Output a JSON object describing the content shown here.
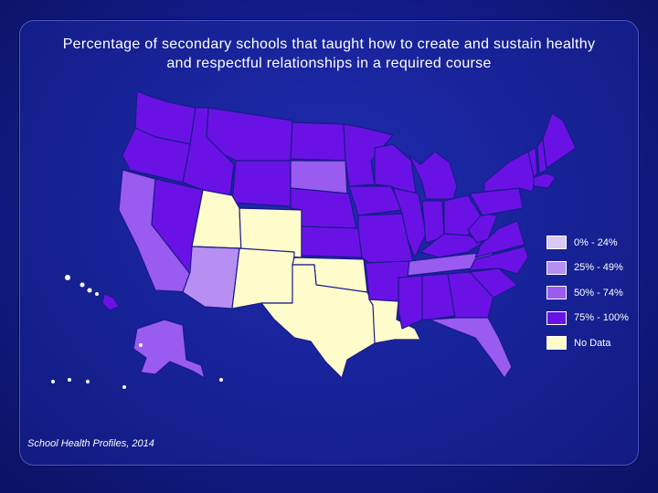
{
  "title_line1": "Percentage of secondary schools that taught how to create and sustain healthy",
  "title_line2": "and respectful relationships in a required course",
  "source": "School Health Profiles, 2014",
  "colors": {
    "c0_24": "#d9c9f3",
    "c25_49": "#b78ff2",
    "c50_74": "#9a5bf0",
    "c75_100": "#6a12e6",
    "no_data": "#fffccc"
  },
  "legend": [
    {
      "label": "0% - 24%",
      "key": "c0_24"
    },
    {
      "label": "25% - 49%",
      "key": "c25_49"
    },
    {
      "label": "50% - 74%",
      "key": "c50_74"
    },
    {
      "label": "75% - 100%",
      "key": "c75_100"
    },
    {
      "label": "No Data",
      "key": "no_data"
    }
  ],
  "states": {
    "WA": "c75_100",
    "OR": "c75_100",
    "ID": "c75_100",
    "MT": "c75_100",
    "ND": "c75_100",
    "MN": "c75_100",
    "SD": "c50_74",
    "WY": "c75_100",
    "NE": "c75_100",
    "IA": "c75_100",
    "WI": "c75_100",
    "MI": "c75_100",
    "CA": "c50_74",
    "NV": "c75_100",
    "UT": "no_data",
    "CO": "no_data",
    "AZ": "c25_49",
    "NM": "no_data",
    "KS": "c75_100",
    "OK": "no_data",
    "TX": "no_data",
    "MO": "c75_100",
    "AR": "c75_100",
    "LA": "no_data",
    "IL": "c75_100",
    "IN": "c75_100",
    "OH": "c75_100",
    "KY": "c75_100",
    "TN": "c50_74",
    "MS": "c75_100",
    "AL": "c75_100",
    "GA": "c75_100",
    "FL": "c50_74",
    "SC": "c75_100",
    "NC": "c75_100",
    "VA": "c75_100",
    "WV": "c75_100",
    "PA": "c75_100",
    "NY": "c75_100",
    "ME": "c75_100",
    "VT": "c75_100",
    "NH": "c75_100",
    "MA": "c75_100",
    "AK": "c50_74",
    "HI": "c75_100"
  }
}
